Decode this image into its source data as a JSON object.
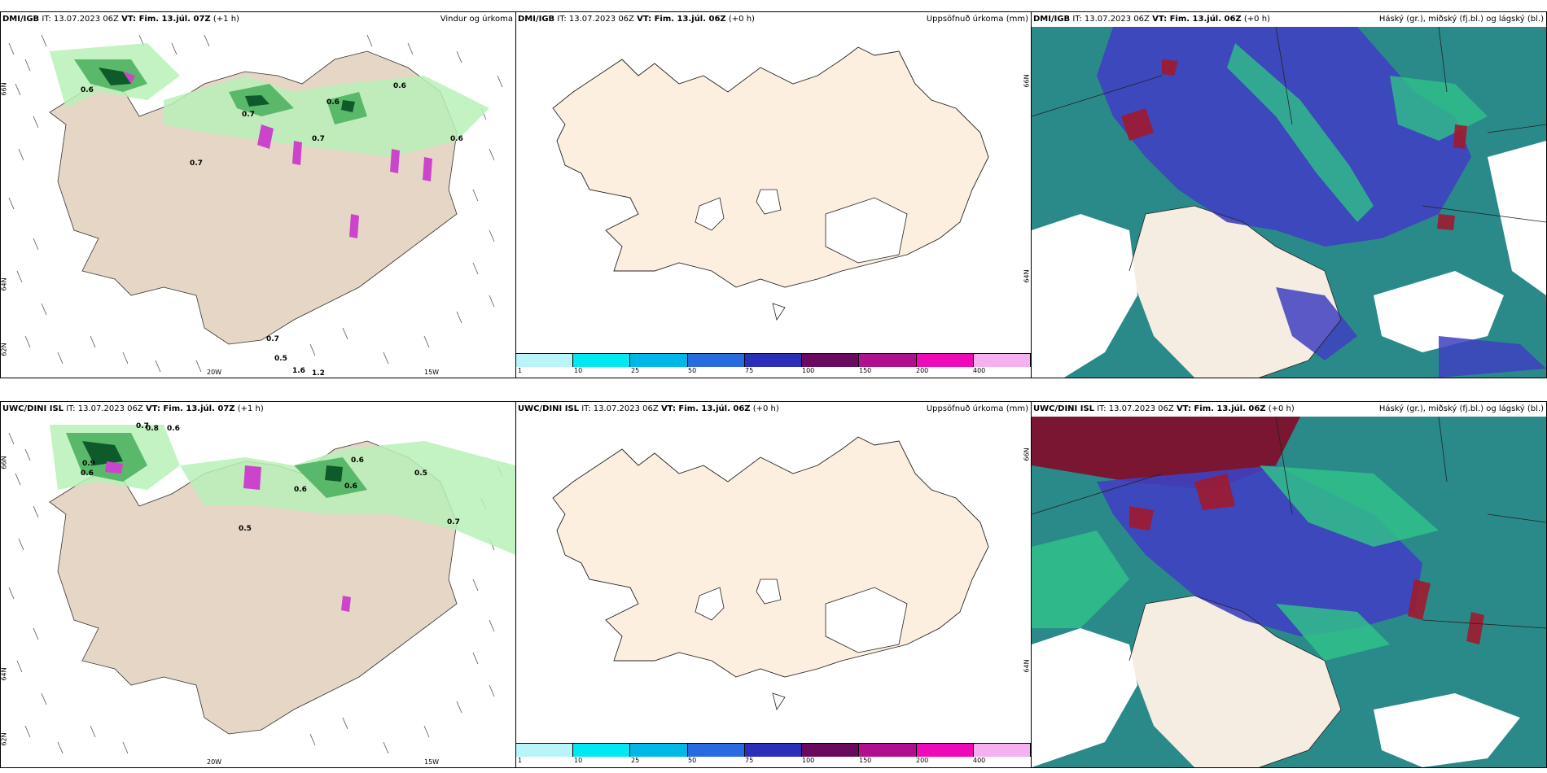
{
  "panels": [
    {
      "model": "DMI/IGB",
      "it": "IT: 13.07.2023 06Z",
      "vt": "VT: Fim. 13.júl. 07Z",
      "lead": "(+1 h)",
      "product": "Vindur og úrkoma",
      "axes": {
        "lat_top": "66N",
        "lat_mid": "64N",
        "lat_bot": "62N",
        "lon_left": "20W",
        "lon_right": "15W"
      },
      "precip_labels": [
        "0.6",
        "0.6",
        "0.7",
        "0.7",
        "0.6",
        "0.6",
        "0.7",
        "0.7",
        "0.5",
        "1.6",
        "1.2"
      ]
    },
    {
      "model": "DMI/IGB",
      "it": "IT: 13.07.2023 06Z",
      "vt": "VT: Fim. 13.júl. 06Z",
      "lead": "(+0 h)",
      "product": "Uppsöfnuð úrkoma (mm)",
      "axes": {
        "lat_top": "66N",
        "lat_mid": "64N"
      }
    },
    {
      "model": "DMI/IGB",
      "it": "IT: 13.07.2023 06Z",
      "vt": "VT: Fim. 13.júl. 06Z",
      "lead": "(+0 h)",
      "product": "Háský (gr.), miðský (fj.bl.) og lágský (bl.)"
    },
    {
      "model": "UWC/DINI ISL",
      "it": "IT: 13.07.2023 06Z",
      "vt": "VT: Fim. 13.júl. 07Z",
      "lead": "(+1 h)",
      "product": "",
      "axes": {
        "lat_top": "66N",
        "lat_mid": "64N",
        "lat_bot": "62N",
        "lon_left": "20W",
        "lon_right": "15W"
      },
      "precip_labels": [
        "0.7",
        "0.8",
        "0.6",
        "0.9",
        "0.6",
        "0.6",
        "0.5",
        "0.6",
        "0.5",
        "0.6",
        "0.7"
      ]
    },
    {
      "model": "UWC/DINI ISL",
      "it": "IT: 13.07.2023 06Z",
      "vt": "VT: Fim. 13.júl. 06Z",
      "lead": "(+0 h)",
      "product": "Uppsöfnuð úrkoma (mm)",
      "axes": {
        "lat_top": "66N",
        "lat_mid": "64N"
      }
    },
    {
      "model": "UWC/DINI ISL",
      "it": "IT: 13.07.2023 06Z",
      "vt": "VT: Fim. 13.júl. 06Z",
      "lead": "(+0 h)",
      "product": "Háský (gr.), miðský (fj.bl.) og lágský (bl.)"
    }
  ],
  "colorbar": {
    "labels": [
      "1",
      "10",
      "25",
      "50",
      "75",
      "100",
      "150",
      "200",
      "400"
    ],
    "colors": [
      "#b8f4f8",
      "#00e8f2",
      "#00b8e8",
      "#2a6ae0",
      "#2a2eb8",
      "#6a0a5e",
      "#b0108e",
      "#ee0ab8",
      "#f4b0f0"
    ]
  },
  "colors": {
    "land": "#f5ece2",
    "land_dim": "#e6d6c6",
    "precip_light": "#b8f0b8",
    "precip_mid": "#5ab86a",
    "precip_dark": "#0e5a2a",
    "precip_pink": "#cc44cc",
    "cloud_low": "#3e40c0",
    "cloud_mid": "#2a8a8a",
    "cloud_high": "#a0182e"
  }
}
